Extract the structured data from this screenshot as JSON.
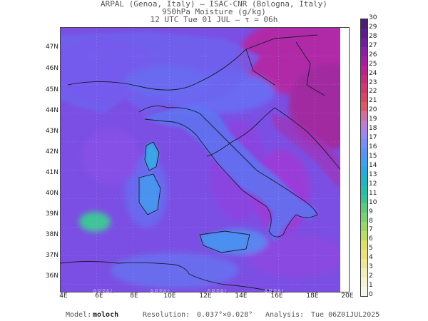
{
  "header": {
    "line1": "ARPAL (Genoa, Italy)  —  ISAC-CNR (Bologna, Italy)",
    "line2": "950hPa Moisture (g/kg)",
    "line3": "12 UTC Tue 01 JUL  —  τ = 06h"
  },
  "map": {
    "lat_labels": [
      "47N",
      "46N",
      "45N",
      "44N",
      "43N",
      "42N",
      "41N",
      "40N",
      "39N",
      "38N",
      "37N",
      "36N"
    ],
    "lon_labels": [
      "4E",
      "6E",
      "8E",
      "10E",
      "12E",
      "14E",
      "16E",
      "18E",
      "20E"
    ],
    "watermark": "ARPAL"
  },
  "colorbar": {
    "labels": [
      "30",
      "29",
      "28",
      "27",
      "26",
      "25",
      "24",
      "23",
      "22",
      "21",
      "20",
      "19",
      "18",
      "17",
      "16",
      "15",
      "14",
      "13",
      "12",
      "11",
      "10",
      "9",
      "8",
      "7",
      "6",
      "5",
      "4",
      "3",
      "2",
      "1",
      "0"
    ],
    "colors": [
      "#4b1e73",
      "#5a1f8a",
      "#6e1f9e",
      "#8a1fa6",
      "#a21fa0",
      "#b8238f",
      "#c22e7e",
      "#cc3a70",
      "#d44866",
      "#d95a66",
      "#cf6fa2",
      "#b87fd6",
      "#9c86ef",
      "#7b8df5",
      "#5c93f2",
      "#3fa0ec",
      "#2aa9da",
      "#25b3c3",
      "#2bbbaa",
      "#3cc292",
      "#5cc97f",
      "#7bd073",
      "#9ad66c",
      "#bcdc6a",
      "#dbe06c",
      "#ece27a",
      "#f1e79a",
      "#f4edbb",
      "#f6f2d6",
      "#f8f6ea"
    ]
  },
  "footer": {
    "model_label": "Model:",
    "model_value": "moloch",
    "resolution_label": "Resolution:",
    "resolution_value": "0.037°×0.028°",
    "analysis_label": "Analysis:",
    "analysis_value": "Tue 06Z01JUL2025"
  }
}
